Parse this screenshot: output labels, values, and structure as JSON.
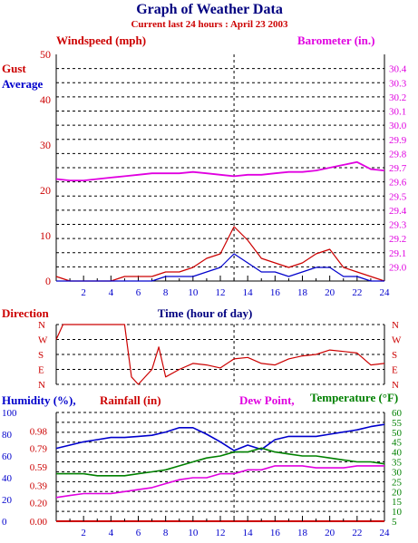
{
  "header": {
    "title": "Graph of Weather Data",
    "subtitle": "Current last 24 hours : April 23 2003"
  },
  "colors": {
    "title": "#000080",
    "subtitle": "#cc0000",
    "red": "#cc0000",
    "blue": "#0000cc",
    "magenta": "#e000e0",
    "green": "#008000",
    "grid": "#000000"
  },
  "chart_data": [
    {
      "type": "line",
      "xlabel": "Time (hour of day)",
      "xlim": [
        0,
        24
      ],
      "x_ticks": [
        "2",
        "4",
        "6",
        "8",
        "10",
        "12",
        "14",
        "16",
        "18",
        "20",
        "22",
        "24"
      ],
      "left_label": "Windspeed (mph)",
      "right_label": "Barometer (in.)",
      "legend": [
        "Gust",
        "Average"
      ],
      "ylim_left": [
        0,
        50
      ],
      "y_ticks_left": [
        "0",
        "10",
        "20",
        "30",
        "40",
        "50"
      ],
      "ylim_right": [
        28.9,
        30.5
      ],
      "y_ticks_right": [
        "29.0",
        "29.1",
        "29.2",
        "29.3",
        "29.4",
        "29.5",
        "29.6",
        "29.7",
        "29.8",
        "29.9",
        "30.0",
        "30.1",
        "30.2",
        "30.3",
        "30.4"
      ],
      "marker_hour": 13,
      "series": [
        {
          "name": "Gust",
          "axis": "left",
          "color": "red",
          "x": [
            0,
            1,
            2,
            3,
            4,
            5,
            6,
            7,
            8,
            9,
            10,
            11,
            12,
            13,
            14,
            15,
            16,
            17,
            18,
            19,
            20,
            21,
            22,
            23,
            24
          ],
          "y": [
            1,
            0,
            0,
            0,
            0,
            1,
            1,
            1,
            2,
            2,
            3,
            5,
            6,
            12,
            9,
            5,
            4,
            3,
            4,
            6,
            7,
            3,
            2,
            1,
            0
          ]
        },
        {
          "name": "Average",
          "axis": "left",
          "color": "blue",
          "x": [
            0,
            1,
            2,
            3,
            4,
            5,
            6,
            7,
            8,
            9,
            10,
            11,
            12,
            13,
            14,
            15,
            16,
            17,
            18,
            19,
            20,
            21,
            22,
            23,
            24
          ],
          "y": [
            0,
            0,
            0,
            0,
            0,
            0,
            0,
            0,
            1,
            1,
            1,
            2,
            3,
            6,
            4,
            2,
            2,
            1,
            2,
            3,
            3,
            1,
            1,
            0,
            0
          ]
        },
        {
          "name": "Barometer",
          "axis": "right",
          "color": "magenta",
          "x": [
            0,
            1,
            2,
            3,
            4,
            5,
            6,
            7,
            8,
            9,
            10,
            11,
            12,
            13,
            14,
            15,
            16,
            17,
            18,
            19,
            20,
            21,
            22,
            23,
            24
          ],
          "y": [
            29.62,
            29.61,
            29.61,
            29.62,
            29.63,
            29.64,
            29.65,
            29.66,
            29.66,
            29.66,
            29.67,
            29.66,
            29.65,
            29.64,
            29.65,
            29.65,
            29.66,
            29.67,
            29.67,
            29.68,
            29.7,
            29.72,
            29.74,
            29.69,
            29.68
          ]
        }
      ]
    },
    {
      "type": "line",
      "title": "Direction",
      "xlim": [
        0,
        24
      ],
      "categories": [
        "N",
        "W",
        "S",
        "E",
        "N"
      ],
      "series": [
        {
          "name": "Direction",
          "color": "red",
          "x": [
            0,
            0.5,
            1,
            2,
            3,
            4,
            5,
            5.5,
            6,
            7,
            7.5,
            8,
            9,
            10,
            11,
            12,
            13,
            14,
            15,
            16,
            17,
            18,
            19,
            20,
            21,
            22,
            23,
            24
          ],
          "y": [
            1.0,
            0.0,
            0.0,
            0.0,
            0.0,
            0.0,
            0.0,
            3.5,
            4.0,
            3.0,
            1.5,
            3.5,
            3.0,
            2.6,
            2.7,
            2.9,
            2.3,
            2.2,
            2.6,
            2.7,
            2.3,
            2.1,
            2.0,
            1.7,
            1.8,
            1.9,
            2.7,
            2.6
          ]
        }
      ]
    },
    {
      "type": "line",
      "xlim": [
        0,
        24
      ],
      "x_ticks": [
        "2",
        "4",
        "6",
        "8",
        "10",
        "12",
        "14",
        "16",
        "18",
        "20",
        "22",
        "24"
      ],
      "labels": [
        "Humidity (%),",
        "Rainfall (in)",
        "Dew Point,",
        "Temperature (°F)"
      ],
      "ylim_humidity": [
        0,
        100
      ],
      "y_ticks_humidity": [
        "0",
        "20",
        "40",
        "60",
        "80",
        "100"
      ],
      "ylim_rainfall": [
        0,
        1.18
      ],
      "y_ticks_rainfall": [
        "0.00",
        "0.20",
        "0.39",
        "0.59",
        "0.79",
        "0.98"
      ],
      "ylim_temperature": [
        5,
        60
      ],
      "y_ticks_temperature": [
        "5",
        "10",
        "15",
        "20",
        "25",
        "30",
        "35",
        "40",
        "45",
        "50",
        "55",
        "60"
      ],
      "marker_hour": 13,
      "series": [
        {
          "name": "Humidity",
          "axis": "humidity",
          "color": "blue",
          "x": [
            0,
            1,
            2,
            3,
            4,
            5,
            6,
            7,
            8,
            9,
            10,
            11,
            12,
            13,
            14,
            15,
            16,
            17,
            18,
            19,
            20,
            21,
            22,
            23,
            24
          ],
          "y": [
            67,
            70,
            73,
            75,
            77,
            77,
            78,
            79,
            82,
            86,
            86,
            80,
            73,
            65,
            70,
            66,
            75,
            78,
            78,
            78,
            80,
            82,
            84,
            87,
            89
          ]
        },
        {
          "name": "Rainfall",
          "axis": "rainfall",
          "color": "red",
          "x": [
            0,
            24
          ],
          "y": [
            0.0,
            0.0
          ]
        },
        {
          "name": "Dew Point",
          "axis": "temperature",
          "color": "magenta",
          "x": [
            0,
            1,
            2,
            3,
            4,
            5,
            6,
            7,
            8,
            9,
            10,
            11,
            12,
            13,
            14,
            15,
            16,
            17,
            18,
            19,
            20,
            21,
            22,
            23,
            24
          ],
          "y": [
            17,
            18,
            19,
            19,
            19,
            20,
            21,
            22,
            24,
            26,
            27,
            27,
            29,
            29,
            31,
            31,
            33,
            33,
            33,
            32,
            32,
            32,
            33,
            33,
            33
          ]
        },
        {
          "name": "Temperature",
          "axis": "temperature",
          "color": "green",
          "x": [
            0,
            1,
            2,
            3,
            4,
            5,
            6,
            7,
            8,
            9,
            10,
            11,
            12,
            13,
            14,
            15,
            16,
            17,
            18,
            19,
            20,
            21,
            22,
            23,
            24
          ],
          "y": [
            29,
            29,
            29,
            28,
            28,
            28,
            29,
            30,
            31,
            33,
            35,
            37,
            38,
            40,
            40,
            42,
            40,
            39,
            38,
            38,
            37,
            36,
            35,
            35,
            34
          ]
        }
      ]
    }
  ]
}
